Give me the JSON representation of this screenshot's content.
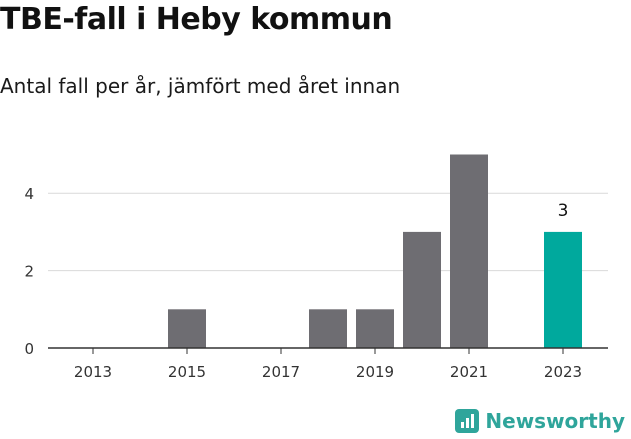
{
  "title": "TBE-fall i Heby kommun",
  "subtitle": "Antal fall per år, jämfört med året innan",
  "brand": {
    "name": "Newsworthy",
    "icon": "bar-chart-logo-icon",
    "color": "#2fa59b"
  },
  "chart_data": {
    "type": "bar",
    "title": "TBE-fall i Heby kommun",
    "subtitle": "Antal fall per år, jämfört med året innan",
    "xlabel": "",
    "ylabel": "",
    "categories": [
      "2013",
      "2014",
      "2015",
      "2016",
      "2017",
      "2018",
      "2019",
      "2020",
      "2021",
      "2022",
      "2023"
    ],
    "values": [
      0,
      0,
      1,
      0,
      0,
      1,
      1,
      3,
      5,
      0,
      3
    ],
    "xticks": [
      "2013",
      "2015",
      "2017",
      "2019",
      "2021",
      "2023"
    ],
    "yticks": [
      0,
      2,
      4
    ],
    "ylim": [
      0,
      5.5
    ],
    "grid": true,
    "highlight": {
      "category": "2023",
      "label": "3"
    },
    "colors": {
      "default": "#6e6d72",
      "highlight": "#00a99d"
    }
  }
}
